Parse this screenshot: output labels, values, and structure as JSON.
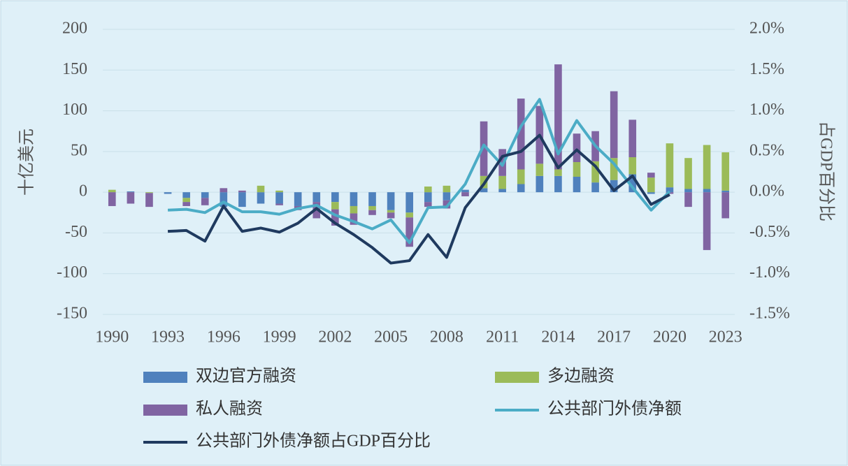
{
  "chart_data": {
    "type": "bar-line",
    "y_label": "十亿美元",
    "y2_label": "占GDP百分比",
    "categories": [
      1990,
      null,
      null,
      1993,
      null,
      null,
      1996,
      null,
      null,
      1999,
      null,
      null,
      2002,
      null,
      null,
      2005,
      null,
      null,
      2008,
      null,
      null,
      2011,
      null,
      null,
      2014,
      null,
      null,
      2017,
      null,
      null,
      2020,
      null,
      null,
      2023
    ],
    "series": [
      {
        "name": "双边官方融资",
        "kind": "bar",
        "color": "#4f81bd",
        "values": [
          0,
          1,
          0,
          -2,
          -7,
          -7,
          -18,
          -18,
          -14,
          -14,
          -17,
          -12,
          -12,
          -17,
          -17,
          -22,
          -25,
          -12,
          -10,
          3,
          5,
          4,
          10,
          20,
          20,
          19,
          12,
          15,
          22,
          -2,
          6,
          4,
          4,
          2
        ]
      },
      {
        "name": "多边融资",
        "kind": "bar",
        "color": "#9bbb59",
        "values": [
          3,
          0,
          -1,
          0,
          -5,
          0,
          0,
          0,
          8,
          2,
          0,
          0,
          -9,
          -9,
          -5,
          -3,
          -6,
          7,
          8,
          0,
          15,
          16,
          18,
          15,
          8,
          18,
          26,
          27,
          21,
          18,
          54,
          38,
          54,
          47
        ]
      },
      {
        "name": "私人融资",
        "kind": "bar",
        "color": "#8064a2",
        "values": [
          -17,
          -14,
          -17,
          0,
          -5,
          -9,
          5,
          2,
          0,
          -2,
          -5,
          -20,
          -20,
          -14,
          -6,
          -7,
          -36,
          -6,
          -10,
          -5,
          67,
          33,
          87,
          71,
          129,
          35,
          37,
          82,
          46,
          6,
          -2,
          -18,
          -71,
          -32
        ]
      },
      {
        "name": "公共部门外债净额",
        "kind": "line",
        "color": "#4bacc6",
        "values": [
          null,
          null,
          null,
          -22,
          -21,
          -25,
          -12,
          -24,
          -24,
          -27,
          -20,
          -16,
          -28,
          -36,
          -45,
          -34,
          -62,
          -19,
          -18,
          10,
          58,
          33,
          81,
          114,
          47,
          88,
          57,
          35,
          6,
          -22,
          1,
          null,
          null,
          null
        ]
      },
      {
        "name": "公共部门外债净额占GDP百分比",
        "kind": "line",
        "axis": "y2",
        "color": "#1f3a5f",
        "values": [
          null,
          null,
          null,
          -0.48,
          -0.47,
          -0.6,
          -0.17,
          -0.48,
          -0.44,
          -0.49,
          -0.38,
          -0.2,
          -0.38,
          -0.52,
          -0.68,
          -0.87,
          -0.84,
          -0.52,
          -0.8,
          -0.19,
          0.1,
          0.44,
          0.5,
          0.7,
          0.3,
          0.52,
          0.32,
          0.02,
          0.2,
          -0.15,
          -0.03,
          null,
          null,
          null
        ]
      }
    ],
    "ylim": [
      -150,
      200
    ],
    "yticks": [
      200,
      150,
      100,
      50,
      0,
      -50,
      -100,
      -150
    ],
    "y2lim": [
      -1.5,
      2
    ],
    "y2ticks": [
      {
        "value": 2,
        "label": "2.0%"
      },
      {
        "value": 1.5,
        "label": "1.5%"
      },
      {
        "value": 1,
        "label": "1.0%"
      },
      {
        "value": 0.5,
        "label": "0.5%"
      },
      {
        "value": 0,
        "label": "0.0%"
      },
      {
        "value": -0.5,
        "label": "-0.5%"
      },
      {
        "value": -1,
        "label": "-1.0%"
      },
      {
        "value": -1.5,
        "label": "-1.5%"
      }
    ],
    "grid": true,
    "legend": "bottom"
  }
}
